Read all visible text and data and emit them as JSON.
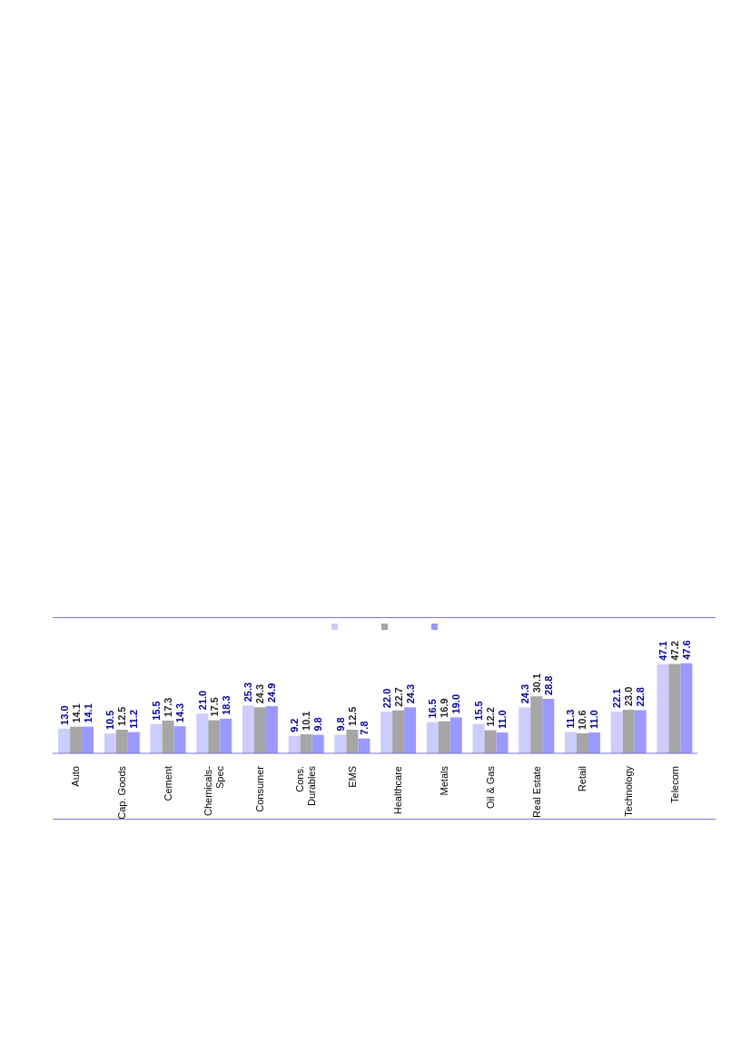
{
  "chart_data": {
    "type": "bar",
    "categories": [
      "Auto",
      "Cap. Goods",
      "Cement",
      "Chemicals-Spec",
      "Consumer",
      "Cons. Durables",
      "EMS",
      "Healthcare",
      "Metals",
      "Oil & Gas",
      "Real Estate",
      "Retail",
      "Technology",
      "Telecom"
    ],
    "series": [
      {
        "color": "#ccccff",
        "values": [
          13.0,
          10.5,
          15.5,
          21.0,
          25.3,
          9.2,
          9.8,
          22.0,
          16.5,
          15.5,
          24.3,
          11.3,
          22.1,
          47.1
        ],
        "value_labels": [
          "13.0",
          "10.5",
          "15.5",
          "21.0",
          "25.3",
          "9.2",
          "9.8",
          "22.0",
          "16.5",
          "15.5",
          "24.3",
          "11.3",
          "22.1",
          "47.1"
        ]
      },
      {
        "color": "#a6a6a6",
        "values": [
          14.1,
          12.5,
          17.3,
          17.5,
          24.3,
          10.1,
          12.5,
          22.7,
          16.9,
          12.2,
          30.1,
          10.6,
          23.0,
          47.2
        ],
        "value_labels": [
          "14.1",
          "12.5",
          "17.3",
          "17.5",
          "24.3",
          "10.1",
          "12.5",
          "22.7",
          "16.9",
          "12.2",
          "30.1",
          "10.6",
          "23.0",
          "47.2"
        ]
      },
      {
        "color": "#9999ff",
        "values": [
          14.1,
          11.2,
          14.3,
          18.3,
          24.9,
          9.8,
          7.8,
          24.3,
          19.0,
          11.0,
          28.8,
          11.0,
          22.8,
          47.6
        ],
        "value_labels": [
          "14.1",
          "11.2",
          "14.3",
          "18.3",
          "24.9",
          "9.8",
          "7.8",
          "24.3",
          "19.0",
          "11.0",
          "28.8",
          "11.0",
          "22.8",
          "47.6"
        ]
      }
    ],
    "grid": false
  }
}
